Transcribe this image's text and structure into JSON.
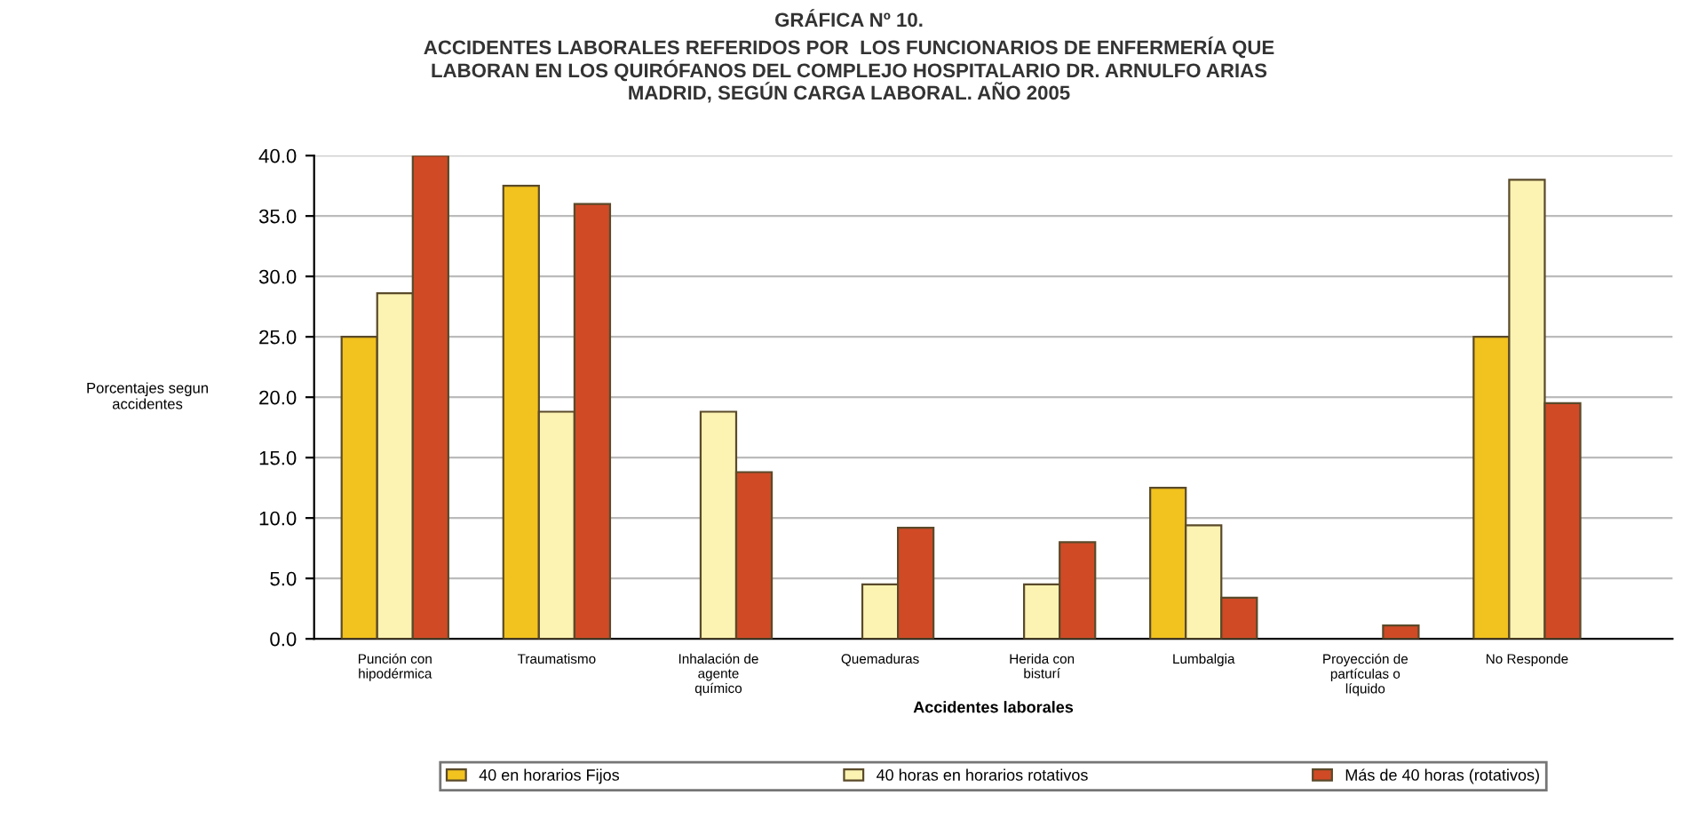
{
  "chart_data": {
    "type": "bar",
    "title": "GRÁFICA Nº 10.",
    "subtitle": "ACCIDENTES LABORALES REFERIDOS POR  LOS FUNCIONARIOS DE ENFERMERÍA QUE\nLABORAN EN LOS QUIRÓFANOS DEL COMPLEJO HOSPITALARIO DR. ARNULFO ARIAS\nMADRID, SEGÚN CARGA LABORAL. AÑO 2005",
    "xlabel": "Accidentes laborales",
    "ylabel": "Porcentajes segun\naccidentes",
    "categories": [
      "Punción con\nhipodérmica",
      "Traumatismo",
      "Inhalación de\nagente\nquímico",
      "Quemaduras",
      "Herida con\nbisturí",
      "Lumbalgia",
      "Proyección de\npartículas o\nlíquido",
      "No Responde"
    ],
    "series": [
      {
        "name": "40 en horarios Fijos",
        "color": "#f2c21e",
        "values": [
          25.0,
          37.5,
          null,
          null,
          null,
          12.5,
          null,
          25.0
        ]
      },
      {
        "name": "40 horas en horarios rotativos",
        "color": "#fcf3b2",
        "values": [
          28.6,
          18.8,
          18.8,
          4.5,
          4.5,
          9.4,
          null,
          38.0
        ]
      },
      {
        "name": "Más de 40 horas (rotativos)",
        "color": "#d04a26",
        "values": [
          40.0,
          36.0,
          13.8,
          9.2,
          8.0,
          3.4,
          1.1,
          19.5
        ]
      }
    ],
    "ylim": [
      0,
      40
    ],
    "yticks": [
      {
        "value": 0,
        "label": "0.0"
      },
      {
        "value": 5,
        "label": "5.0"
      },
      {
        "value": 10,
        "label": "10.0"
      },
      {
        "value": 15,
        "label": "15.0"
      },
      {
        "value": 20,
        "label": "20.0"
      },
      {
        "value": 25,
        "label": "25.0"
      },
      {
        "value": 30,
        "label": "30.0"
      },
      {
        "value": 35,
        "label": "35.0"
      },
      {
        "value": 40,
        "label": "40.0"
      }
    ],
    "grid": "y",
    "legend": "bottom"
  }
}
